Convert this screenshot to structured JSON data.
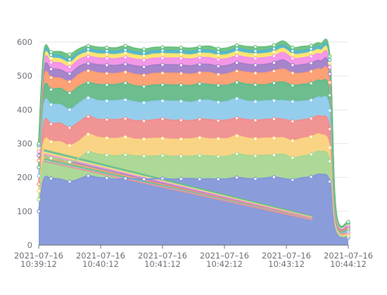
{
  "chart_data": {
    "type": "area",
    "stacked": true,
    "title": "",
    "xlabel": "",
    "ylabel": "",
    "ylim": [
      0,
      600
    ],
    "y_ticks": [
      "0",
      "100",
      "200",
      "300",
      "400",
      "500",
      "600"
    ],
    "y_tick_values": [
      0,
      100,
      200,
      300,
      400,
      500,
      600
    ],
    "x_ticks": [
      {
        "date": "2021–07–16",
        "time": "10:39:12"
      },
      {
        "date": "2021–07–16",
        "time": "10:40:12"
      },
      {
        "date": "2021–07–16",
        "time": "10:41:12"
      },
      {
        "date": "2021–07–16",
        "time": "10:42:12"
      },
      {
        "date": "2021–07–16",
        "time": "10:43:12"
      },
      {
        "date": "2021–07–16",
        "time": "10:44:12"
      }
    ],
    "x_unit": "seconds since 10:39:12",
    "x_range_seconds": [
      0,
      300
    ],
    "grid": true,
    "legend": "none",
    "x": [
      0,
      5,
      12,
      21,
      30,
      39,
      48,
      57,
      66,
      75,
      84,
      93,
      102,
      111,
      120,
      129,
      138,
      147,
      156,
      165,
      174,
      183,
      192,
      201,
      210,
      219,
      228,
      237,
      246,
      255,
      264,
      273,
      282,
      288,
      300
    ],
    "series": [
      {
        "color": "#8497d8",
        "values": [
          100,
          195,
          197,
          195,
          188,
          195,
          205,
          200,
          198,
          195,
          197,
          196,
          195,
          196,
          197,
          195,
          196,
          197,
          195,
          196,
          195,
          196,
          200,
          197,
          196,
          198,
          201,
          197,
          193,
          199,
          202,
          209,
          188,
          40,
          22
        ]
      },
      {
        "color": "#a8d791",
        "values": [
          35,
          60,
          60,
          60,
          58,
          62,
          70,
          69,
          68,
          69,
          70,
          68,
          68,
          67,
          68,
          68,
          67,
          66,
          70,
          68,
          67,
          67,
          70,
          69,
          68,
          68,
          65,
          72,
          65,
          64,
          66,
          68,
          60,
          10,
          5
        ]
      },
      {
        "color": "#fad27e",
        "values": [
          25,
          50,
          48,
          50,
          48,
          50,
          52,
          50,
          50,
          51,
          52,
          49,
          50,
          52,
          50,
          50,
          50,
          51,
          52,
          50,
          52,
          52,
          53,
          51,
          50,
          50,
          50,
          48,
          50,
          52,
          52,
          50,
          40,
          8,
          5
        ]
      },
      {
        "color": "#ef8e8e",
        "values": [
          20,
          55,
          53,
          55,
          53,
          57,
          53,
          53,
          55,
          56,
          55,
          55,
          54,
          55,
          58,
          56,
          56,
          54,
          55,
          57,
          54,
          55,
          52,
          54,
          55,
          55,
          57,
          55,
          58,
          55,
          54,
          54,
          55,
          8,
          5
        ]
      },
      {
        "color": "#8fcbeb",
        "values": [
          25,
          55,
          57,
          55,
          53,
          55,
          55,
          55,
          55,
          56,
          55,
          55,
          54,
          55,
          53,
          56,
          56,
          54,
          55,
          57,
          54,
          55,
          58,
          55,
          55,
          55,
          54,
          55,
          58,
          55,
          54,
          55,
          55,
          8,
          5
        ]
      },
      {
        "color": "#65b988",
        "values": [
          25,
          45,
          45,
          48,
          50,
          50,
          45,
          48,
          48,
          48,
          50,
          48,
          48,
          48,
          48,
          48,
          48,
          50,
          50,
          47,
          50,
          48,
          48,
          50,
          50,
          48,
          52,
          55,
          48,
          50,
          50,
          50,
          45,
          6,
          5
        ]
      },
      {
        "color": "#fd9d6f",
        "values": [
          20,
          33,
          35,
          30,
          33,
          35,
          35,
          34,
          33,
          32,
          32,
          34,
          33,
          34,
          34,
          35,
          34,
          33,
          32,
          35,
          32,
          33,
          33,
          35,
          34,
          35,
          35,
          38,
          36,
          33,
          35,
          33,
          38,
          6,
          5
        ]
      },
      {
        "color": "#a27ec8",
        "values": [
          15,
          25,
          25,
          25,
          24,
          24,
          22,
          24,
          25,
          24,
          24,
          25,
          25,
          25,
          25,
          25,
          25,
          25,
          25,
          24,
          25,
          25,
          25,
          24,
          24,
          25,
          25,
          27,
          24,
          25,
          25,
          25,
          25,
          5,
          4
        ]
      },
      {
        "color": "#f291e6",
        "values": [
          12,
          20,
          20,
          20,
          20,
          20,
          20,
          20,
          20,
          20,
          20,
          20,
          20,
          20,
          20,
          20,
          20,
          20,
          20,
          20,
          20,
          20,
          20,
          20,
          20,
          20,
          20,
          22,
          20,
          20,
          20,
          20,
          20,
          4,
          4
        ]
      },
      {
        "color": "#fbe56c",
        "values": [
          10,
          12,
          12,
          12,
          12,
          12,
          12,
          12,
          12,
          12,
          12,
          12,
          12,
          12,
          12,
          12,
          12,
          12,
          12,
          12,
          12,
          12,
          12,
          12,
          12,
          12,
          12,
          12,
          12,
          12,
          12,
          12,
          12,
          3,
          3
        ]
      },
      {
        "color": "#52b6c7",
        "values": [
          8,
          10,
          10,
          10,
          10,
          10,
          10,
          10,
          10,
          10,
          10,
          10,
          10,
          10,
          10,
          10,
          10,
          10,
          10,
          10,
          10,
          10,
          10,
          10,
          10,
          10,
          10,
          10,
          10,
          10,
          10,
          10,
          10,
          3,
          3
        ]
      },
      {
        "color": "#6ac07f",
        "values": [
          5,
          10,
          9,
          12,
          15,
          10,
          10,
          10,
          10,
          10,
          12,
          10,
          10,
          10,
          10,
          10,
          10,
          10,
          10,
          12,
          10,
          10,
          10,
          10,
          12,
          10,
          10,
          12,
          10,
          12,
          10,
          10,
          10,
          3,
          3
        ]
      }
    ],
    "diagonal_artifacts": [
      {
        "color": "#6ac07f",
        "x": [
          5,
          265
        ],
        "y": [
          282,
          85
        ]
      },
      {
        "color": "#52b6c7",
        "x": [
          5,
          265
        ],
        "y": [
          278,
          82
        ]
      },
      {
        "color": "#fbe56c",
        "x": [
          5,
          265
        ],
        "y": [
          275,
          82
        ]
      },
      {
        "color": "#f291e6",
        "x": [
          5,
          265
        ],
        "y": [
          270,
          80
        ]
      },
      {
        "color": "#a27ec8",
        "x": [
          5,
          265
        ],
        "y": [
          265,
          78
        ]
      },
      {
        "color": "#fd9d6f",
        "x": [
          5,
          265
        ],
        "y": [
          260,
          78
        ]
      },
      {
        "color": "#65b988",
        "x": [
          5,
          265
        ],
        "y": [
          255,
          76
        ]
      },
      {
        "color": "#8fcbeb",
        "x": [
          5,
          265
        ],
        "y": [
          250,
          76
        ]
      },
      {
        "color": "#ef8e8e",
        "x": [
          5,
          265
        ],
        "y": [
          248,
          75
        ]
      }
    ]
  }
}
